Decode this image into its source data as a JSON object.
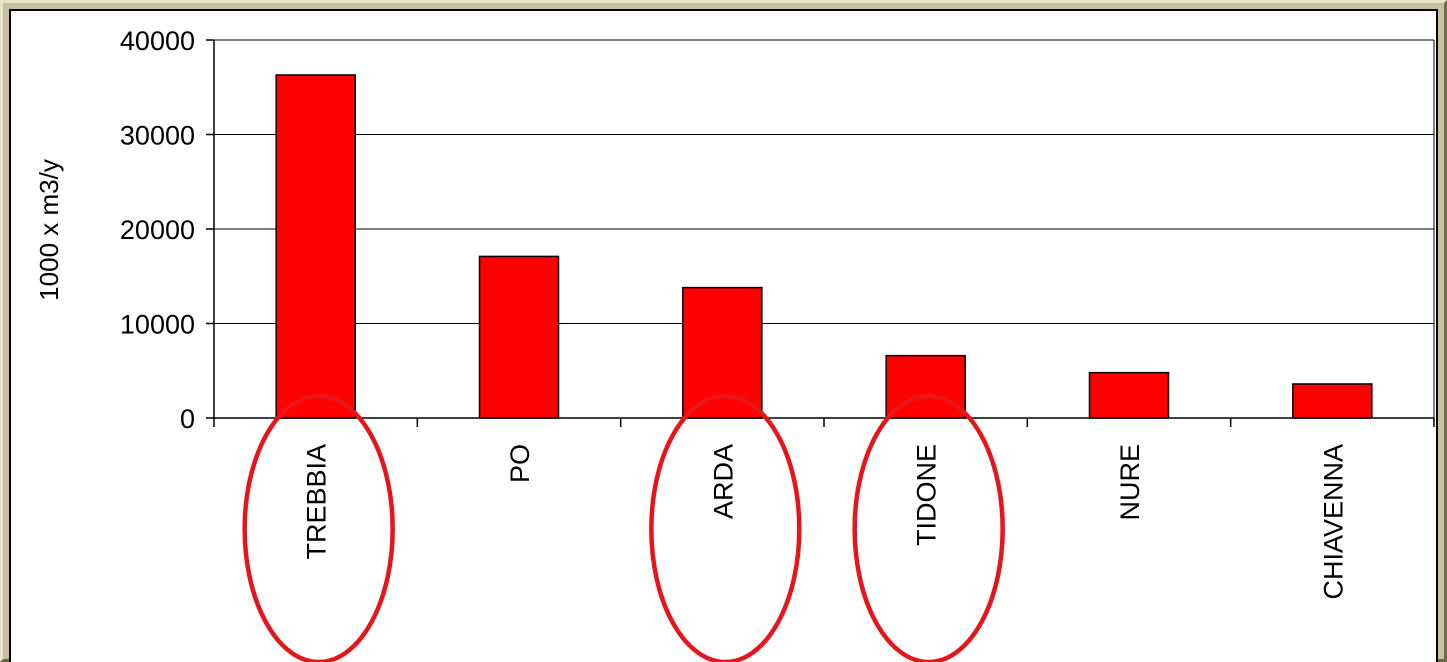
{
  "colors": {
    "bar": "#ff0000",
    "highlight": "#e8141b",
    "gridline": "#000000"
  },
  "chart_data": {
    "type": "bar",
    "title": "",
    "xlabel": "",
    "ylabel": "1000 x m3/y",
    "categories": [
      "TREBBIA",
      "PO",
      "ARDA",
      "TIDONE",
      "NURE",
      "CHIAVENNA"
    ],
    "values": [
      36300,
      17100,
      13800,
      6600,
      4800,
      3600
    ],
    "ylim": [
      0,
      40000
    ],
    "yticks": [
      "0",
      "10000",
      "20000",
      "30000",
      "40000"
    ],
    "grid": true,
    "legend": "none",
    "highlighted_categories": [
      "TREBBIA",
      "ARDA",
      "TIDONE"
    ]
  }
}
